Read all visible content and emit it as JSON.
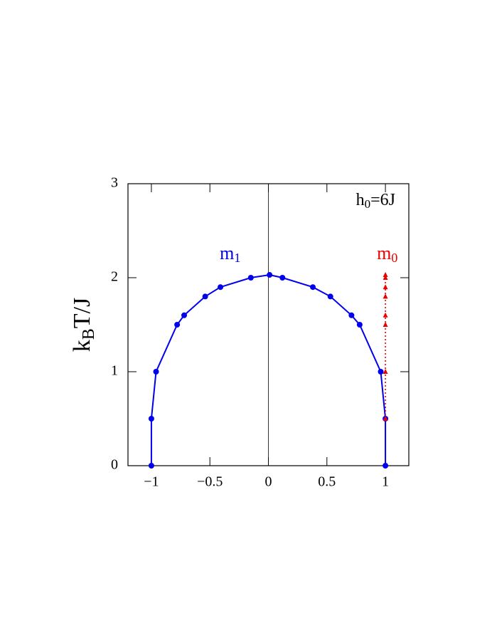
{
  "chart_data": {
    "type": "line",
    "ylabel": {
      "base": "k",
      "sub": "B",
      "after": "T/J"
    },
    "annotation": {
      "base": "h",
      "sub": "0",
      "after": "=6J"
    },
    "xlim": [
      -1.2,
      1.2
    ],
    "ylim": [
      0,
      3
    ],
    "xticks": [
      {
        "value": -1,
        "label": "−1"
      },
      {
        "value": -0.5,
        "label": "−0.5"
      },
      0,
      0.5,
      1
    ],
    "yticks": [
      0,
      1,
      2,
      3
    ],
    "series": [
      {
        "name": {
          "base": "m",
          "sub": "1"
        },
        "color": "#0000ee",
        "marker": "circle",
        "dash": "solid",
        "x": [
          -1,
          -1,
          -0.96,
          -0.78,
          -0.72,
          -0.54,
          -0.41,
          -0.15,
          0.01,
          0.12,
          0.38,
          0.53,
          0.71,
          0.78,
          0.96,
          1,
          1
        ],
        "values": [
          0,
          0.5,
          1.0,
          1.5,
          1.6,
          1.8,
          1.9,
          2.0,
          2.03,
          2.0,
          1.9,
          1.8,
          1.6,
          1.5,
          1.0,
          0.5,
          0
        ]
      },
      {
        "name": {
          "base": "m",
          "sub": "0"
        },
        "color": "#ee0000",
        "marker": "triangle",
        "dash": "dotted",
        "x": [
          1,
          1,
          1,
          1,
          1,
          1,
          1,
          1
        ],
        "values": [
          0.5,
          1.0,
          1.5,
          1.6,
          1.8,
          1.9,
          2.0,
          2.03
        ]
      }
    ]
  }
}
